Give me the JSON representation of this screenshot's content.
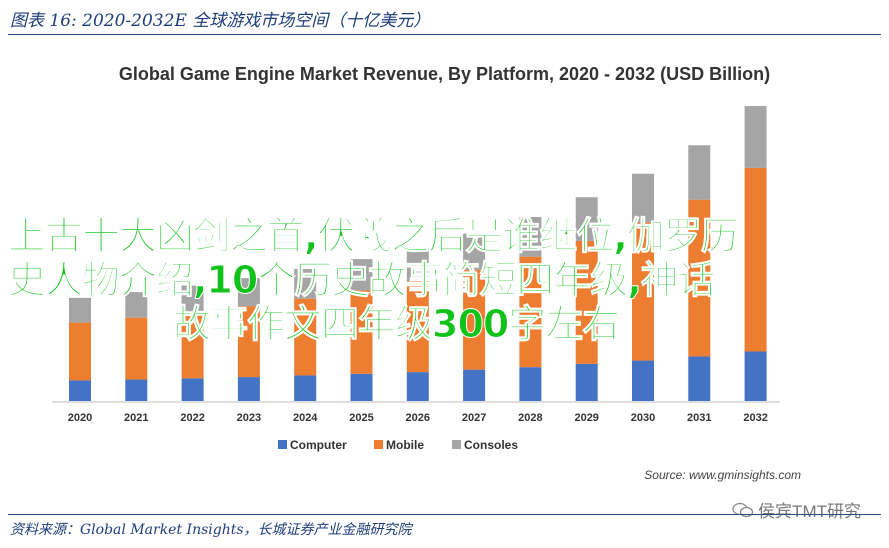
{
  "figure_caption": "图表 16:  2020-2032E 全球游戏市场空间（十亿美元）",
  "source_footer": "资料来源：Global Market Insights，长城证券产业金融研究院",
  "source_note": "Source: www.gminsights.com",
  "watermark": "侯宾TMT研究",
  "overlay": {
    "line1": "上古十大凶剑之首,伏羲之后是谁继位,伽罗历",
    "line2": "史人物介绍,10个历史故事简短四年级,神话",
    "line3": "故事作文四年级300字左右"
  },
  "colors": {
    "computer": "#4472c4",
    "mobile": "#ed7d31",
    "consoles": "#a5a5a5",
    "overlay_text": "#11c21b"
  },
  "chart_data": {
    "type": "bar",
    "stacked": true,
    "title": "Global Game Engine Market Revenue, By Platform, 2020 - 2032 (USD Billion)",
    "categories": [
      "2020",
      "2021",
      "2022",
      "2023",
      "2024",
      "2025",
      "2026",
      "2027",
      "2028",
      "2029",
      "2030",
      "2031",
      "2032"
    ],
    "series": [
      {
        "name": "Computer",
        "values": [
          0.5,
          0.52,
          0.55,
          0.58,
          0.62,
          0.66,
          0.7,
          0.76,
          0.82,
          0.9,
          0.98,
          1.08,
          1.2
        ]
      },
      {
        "name": "Mobile",
        "values": [
          1.4,
          1.5,
          1.6,
          1.72,
          1.86,
          2.02,
          2.2,
          2.42,
          2.68,
          2.98,
          3.35,
          3.8,
          4.45
        ]
      },
      {
        "name": "Consoles",
        "values": [
          0.6,
          0.62,
          0.65,
          0.68,
          0.72,
          0.76,
          0.8,
          0.88,
          0.96,
          1.06,
          1.18,
          1.32,
          1.5
        ]
      }
    ],
    "ylim": [
      0,
      7.2
    ],
    "legend_position": "bottom",
    "grid": false
  }
}
